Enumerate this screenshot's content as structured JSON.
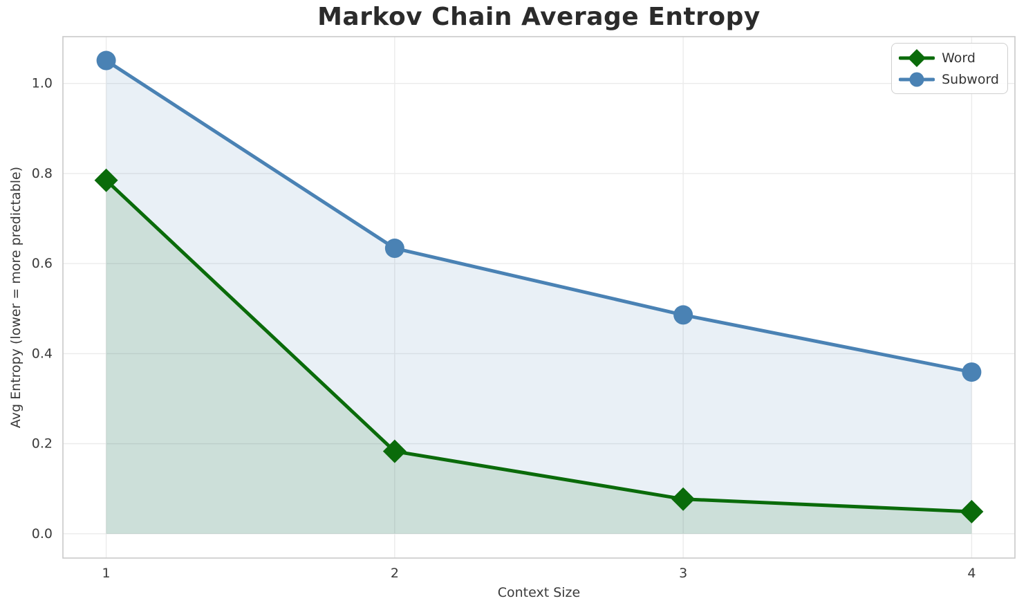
{
  "chart_data": {
    "type": "line",
    "title": "Markov Chain Average Entropy",
    "xlabel": "Context Size",
    "ylabel": "Avg Entropy (lower = more predictable)",
    "x": [
      1,
      2,
      3,
      4
    ],
    "series": [
      {
        "name": "Word",
        "marker": "diamond",
        "color": "#0a6b0a",
        "fill_opacity": 0.13,
        "values": [
          0.785,
          0.183,
          0.077,
          0.049
        ]
      },
      {
        "name": "Subword",
        "marker": "circle",
        "color": "#4a82b4",
        "fill_opacity": 0.12,
        "values": [
          1.051,
          0.634,
          0.486,
          0.359
        ]
      }
    ],
    "xtick_labels": [
      "1",
      "2",
      "3",
      "4"
    ],
    "ytick_labels": [
      "0.0",
      "0.2",
      "0.4",
      "0.6",
      "0.8",
      "1.0"
    ],
    "xlim": [
      0.85,
      4.15
    ],
    "ylim": [
      -0.054,
      1.104
    ],
    "area_fill_baseline": 0,
    "grid": true,
    "legend": {
      "position": "upper right",
      "entries": [
        "Word",
        "Subword"
      ]
    },
    "palette": {
      "grid": "#ebebeb",
      "spine": "#c9c9c9",
      "tick": "#3a3a3a",
      "title": "#2b2b2b",
      "axis_label": "#3a3a3a"
    }
  }
}
